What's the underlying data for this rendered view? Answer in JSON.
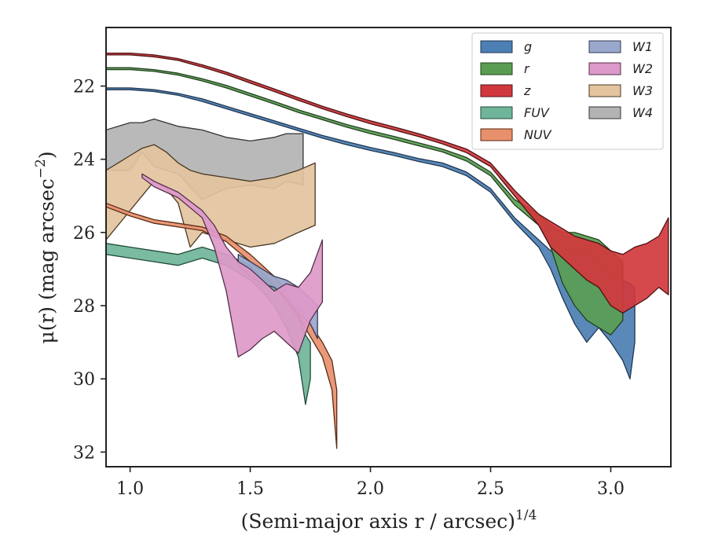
{
  "chart_data": {
    "type": "area",
    "title": "",
    "xlabel": "(Semi-major axis r / arcsec)",
    "xlabel_sup": "1/4",
    "ylabel": "μ(r) (mag arcsec",
    "ylabel_sup": "−2",
    "ylabel_tail": ")",
    "xlim": [
      0.9,
      3.25
    ],
    "ylim": [
      32.4,
      20.4
    ],
    "y_inverted": true,
    "xticks": [
      1.0,
      1.5,
      2.0,
      2.5,
      3.0
    ],
    "xtick_labels": [
      "1.0",
      "1.5",
      "2.0",
      "2.5",
      "3.0"
    ],
    "yticks": [
      22,
      24,
      26,
      28,
      30,
      32
    ],
    "ytick_labels": [
      "22",
      "24",
      "26",
      "28",
      "30",
      "32"
    ],
    "grid": false,
    "legend": {
      "placement": "top-right",
      "columns": 2
    },
    "series": [
      {
        "name": "g",
        "color": "#4c7fb3",
        "outline": "#1f3550",
        "points": [
          [
            0.9,
            22.05,
            22.1
          ],
          [
            1.0,
            22.05,
            22.1
          ],
          [
            1.1,
            22.1,
            22.15
          ],
          [
            1.2,
            22.2,
            22.25
          ],
          [
            1.3,
            22.35,
            22.42
          ],
          [
            1.4,
            22.55,
            22.62
          ],
          [
            1.5,
            22.75,
            22.82
          ],
          [
            1.6,
            22.95,
            23.02
          ],
          [
            1.7,
            23.15,
            23.22
          ],
          [
            1.8,
            23.35,
            23.42
          ],
          [
            1.9,
            23.52,
            23.6
          ],
          [
            2.0,
            23.68,
            23.76
          ],
          [
            2.1,
            23.82,
            23.9
          ],
          [
            2.2,
            23.98,
            24.06
          ],
          [
            2.3,
            24.1,
            24.2
          ],
          [
            2.4,
            24.35,
            24.45
          ],
          [
            2.5,
            24.8,
            24.9
          ],
          [
            2.6,
            25.6,
            25.72
          ],
          [
            2.7,
            26.2,
            26.4
          ],
          [
            2.75,
            26.5,
            27.0
          ],
          [
            2.8,
            26.5,
            27.8
          ],
          [
            2.85,
            26.5,
            28.5
          ],
          [
            2.9,
            26.6,
            29.0
          ],
          [
            2.95,
            26.8,
            28.6
          ],
          [
            3.0,
            27.2,
            29.0
          ],
          [
            3.05,
            27.3,
            29.5
          ],
          [
            3.08,
            27.4,
            30.0
          ],
          [
            3.1,
            27.5,
            29.0
          ]
        ]
      },
      {
        "name": "r",
        "color": "#5a9d52",
        "outline": "#22401f",
        "points": [
          [
            0.9,
            21.5,
            21.55
          ],
          [
            1.0,
            21.5,
            21.55
          ],
          [
            1.1,
            21.55,
            21.6
          ],
          [
            1.2,
            21.65,
            21.7
          ],
          [
            1.3,
            21.8,
            21.86
          ],
          [
            1.4,
            21.98,
            22.05
          ],
          [
            1.5,
            22.2,
            22.27
          ],
          [
            1.6,
            22.42,
            22.49
          ],
          [
            1.7,
            22.65,
            22.72
          ],
          [
            1.8,
            22.85,
            22.92
          ],
          [
            1.9,
            23.05,
            23.12
          ],
          [
            2.0,
            23.22,
            23.3
          ],
          [
            2.1,
            23.38,
            23.46
          ],
          [
            2.2,
            23.55,
            23.63
          ],
          [
            2.3,
            23.72,
            23.8
          ],
          [
            2.4,
            23.95,
            24.05
          ],
          [
            2.5,
            24.35,
            24.45
          ],
          [
            2.6,
            25.1,
            25.25
          ],
          [
            2.7,
            25.5,
            25.8
          ],
          [
            2.75,
            25.8,
            26.4
          ],
          [
            2.8,
            26.0,
            27.4
          ],
          [
            2.85,
            26.0,
            28.0
          ],
          [
            2.9,
            26.1,
            28.4
          ],
          [
            2.95,
            26.2,
            28.6
          ],
          [
            3.0,
            26.5,
            28.8
          ],
          [
            3.05,
            26.8,
            28.4
          ]
        ]
      },
      {
        "name": "z",
        "color": "#d1383d",
        "outline": "#4d1012",
        "points": [
          [
            0.9,
            21.1,
            21.15
          ],
          [
            1.0,
            21.1,
            21.15
          ],
          [
            1.1,
            21.15,
            21.2
          ],
          [
            1.2,
            21.25,
            21.3
          ],
          [
            1.3,
            21.42,
            21.48
          ],
          [
            1.4,
            21.62,
            21.68
          ],
          [
            1.5,
            21.85,
            21.92
          ],
          [
            1.6,
            22.08,
            22.15
          ],
          [
            1.7,
            22.32,
            22.39
          ],
          [
            1.8,
            22.55,
            22.62
          ],
          [
            1.9,
            22.76,
            22.83
          ],
          [
            2.0,
            22.95,
            23.03
          ],
          [
            2.1,
            23.12,
            23.2
          ],
          [
            2.2,
            23.3,
            23.38
          ],
          [
            2.3,
            23.5,
            23.58
          ],
          [
            2.4,
            23.72,
            23.82
          ],
          [
            2.5,
            24.1,
            24.2
          ],
          [
            2.6,
            24.85,
            25.0
          ],
          [
            2.7,
            25.5,
            25.8
          ],
          [
            2.75,
            25.7,
            26.4
          ],
          [
            2.8,
            25.9,
            26.7
          ],
          [
            2.85,
            26.1,
            27.0
          ],
          [
            2.9,
            26.2,
            27.3
          ],
          [
            2.95,
            26.3,
            27.5
          ],
          [
            3.0,
            26.5,
            28.0
          ],
          [
            3.05,
            26.6,
            28.2
          ],
          [
            3.1,
            26.4,
            28.0
          ],
          [
            3.15,
            26.3,
            27.8
          ],
          [
            3.2,
            26.1,
            27.5
          ],
          [
            3.24,
            25.6,
            27.7
          ]
        ]
      },
      {
        "name": "FUV",
        "color": "#6fb59a",
        "outline": "#244a3a",
        "points": [
          [
            0.9,
            26.3,
            26.6
          ],
          [
            1.0,
            26.4,
            26.7
          ],
          [
            1.1,
            26.5,
            26.8
          ],
          [
            1.2,
            26.6,
            26.9
          ],
          [
            1.3,
            26.4,
            26.7
          ],
          [
            1.4,
            26.6,
            26.9
          ],
          [
            1.5,
            26.9,
            27.3
          ],
          [
            1.55,
            27.2,
            27.6
          ],
          [
            1.6,
            27.5,
            28.0
          ],
          [
            1.65,
            27.8,
            28.6
          ],
          [
            1.7,
            28.3,
            29.4
          ],
          [
            1.73,
            28.8,
            30.7
          ],
          [
            1.75,
            29.0,
            30.0
          ]
        ]
      },
      {
        "name": "NUV",
        "color": "#e8906c",
        "outline": "#5a2a15",
        "points": [
          [
            0.9,
            25.2,
            25.3
          ],
          [
            1.0,
            25.45,
            25.55
          ],
          [
            1.1,
            25.65,
            25.75
          ],
          [
            1.2,
            25.75,
            25.85
          ],
          [
            1.3,
            25.85,
            25.95
          ],
          [
            1.4,
            26.1,
            26.25
          ],
          [
            1.5,
            26.6,
            26.8
          ],
          [
            1.6,
            27.2,
            27.45
          ],
          [
            1.7,
            28.0,
            28.3
          ],
          [
            1.75,
            28.5,
            28.85
          ],
          [
            1.8,
            29.0,
            29.4
          ],
          [
            1.84,
            29.5,
            30.3
          ],
          [
            1.86,
            30.3,
            31.9
          ]
        ]
      },
      {
        "name": "W1",
        "color": "#9aa7cc",
        "outline": "#333a55",
        "points": [
          [
            1.45,
            26.6,
            26.9
          ],
          [
            1.5,
            26.8,
            27.2
          ],
          [
            1.55,
            27.0,
            27.4
          ],
          [
            1.6,
            27.2,
            27.5
          ],
          [
            1.65,
            27.3,
            27.8
          ],
          [
            1.7,
            27.5,
            28.2
          ],
          [
            1.75,
            27.8,
            28.5
          ],
          [
            1.78,
            28.0,
            28.9
          ]
        ]
      },
      {
        "name": "W2",
        "color": "#dd99c9",
        "outline": "#55304a",
        "points": [
          [
            1.05,
            24.4,
            24.5
          ],
          [
            1.1,
            24.6,
            24.75
          ],
          [
            1.2,
            24.9,
            25.05
          ],
          [
            1.3,
            25.4,
            25.6
          ],
          [
            1.35,
            25.8,
            26.4
          ],
          [
            1.4,
            26.4,
            27.6
          ],
          [
            1.45,
            26.8,
            29.4
          ],
          [
            1.5,
            27.0,
            29.2
          ],
          [
            1.55,
            27.3,
            28.9
          ],
          [
            1.6,
            27.6,
            28.7
          ],
          [
            1.65,
            27.4,
            29.0
          ],
          [
            1.7,
            27.5,
            29.3
          ],
          [
            1.75,
            27.1,
            28.4
          ],
          [
            1.8,
            26.2,
            27.9
          ]
        ]
      },
      {
        "name": "W3",
        "color": "#e3c49f",
        "outline": "#4a3722",
        "points": [
          [
            0.9,
            24.3,
            26.2
          ],
          [
            0.95,
            24.1,
            25.8
          ],
          [
            1.0,
            23.9,
            25.4
          ],
          [
            1.05,
            23.7,
            25.0
          ],
          [
            1.1,
            23.6,
            24.6
          ],
          [
            1.15,
            23.8,
            24.8
          ],
          [
            1.2,
            24.1,
            25.2
          ],
          [
            1.25,
            24.3,
            26.4
          ],
          [
            1.3,
            24.4,
            26.0
          ],
          [
            1.4,
            24.5,
            26.2
          ],
          [
            1.5,
            24.6,
            26.4
          ],
          [
            1.6,
            24.5,
            26.3
          ],
          [
            1.7,
            24.3,
            26.0
          ],
          [
            1.77,
            24.1,
            25.8
          ]
        ]
      },
      {
        "name": "W4",
        "color": "#b3b3b3",
        "outline": "#333333",
        "points": [
          [
            0.9,
            23.2,
            24.3
          ],
          [
            1.0,
            23.0,
            24.3
          ],
          [
            1.05,
            23.0,
            23.8
          ],
          [
            1.1,
            22.9,
            24.2
          ],
          [
            1.2,
            23.1,
            24.4
          ],
          [
            1.3,
            23.2,
            25.1
          ],
          [
            1.4,
            23.4,
            24.8
          ],
          [
            1.5,
            23.5,
            24.7
          ],
          [
            1.6,
            23.4,
            24.8
          ],
          [
            1.65,
            23.3,
            24.6
          ],
          [
            1.72,
            23.3,
            24.7
          ]
        ]
      }
    ]
  }
}
